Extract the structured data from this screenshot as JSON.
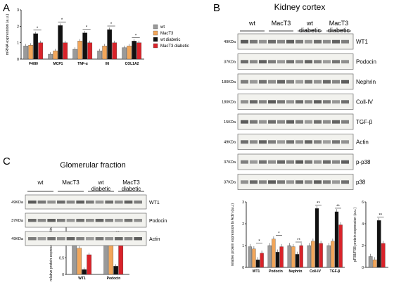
{
  "panels": {
    "A": {
      "letter": "A",
      "legend": [
        "wt",
        "MacT3",
        "wt diabetic",
        "MacT3 diabetic"
      ],
      "colors": {
        "wt": "#9a9a9a",
        "MacT3": "#f2a65a",
        "wt diabetic": "#111111",
        "MacT3 diabetic": "#d9232a"
      }
    },
    "B": {
      "letter": "B",
      "title": "Kidney cortex",
      "groups": [
        "wt",
        "MacT3",
        "wt\ndiabetic",
        "MacT3\ndiabetic"
      ],
      "blots": [
        {
          "kda": "49KDa",
          "label": "WT1"
        },
        {
          "kda": "37KDa",
          "label": "Podocin"
        },
        {
          "kda": "180KDa",
          "label": "Nephrin"
        },
        {
          "kda": "180KDa",
          "label": "Coll-IV"
        },
        {
          "kda": "15KDa",
          "label": "TGF-β"
        },
        {
          "kda": "49KDa",
          "label": "Actin"
        },
        {
          "kda": "37KDa",
          "label": "p-p38"
        },
        {
          "kda": "37KDa",
          "label": "p38"
        }
      ]
    },
    "C": {
      "letter": "C",
      "title": "Glomerular fraction",
      "groups": [
        "wt",
        "MacT3",
        "wt\ndiabetic",
        "MacT3\ndiabetic"
      ],
      "blots": [
        {
          "kda": "49KDa",
          "label": "WT1"
        },
        {
          "kda": "37KDa",
          "label": "Podocin"
        },
        {
          "kda": "49KDa",
          "label": "Actin"
        }
      ]
    }
  },
  "chart_data": [
    {
      "id": "A",
      "type": "bar",
      "ylabel": "mRNA expression (a.u.)",
      "ylim": [
        0,
        3
      ],
      "yticks": [
        0,
        1,
        2,
        3
      ],
      "categories": [
        "F4/80",
        "MCP1",
        "TNF-α",
        "Il6",
        "COL1A2"
      ],
      "series": [
        {
          "name": "wt",
          "values": [
            0.8,
            0.3,
            0.6,
            0.5,
            0.7
          ]
        },
        {
          "name": "MacT3",
          "values": [
            0.85,
            0.5,
            1.1,
            0.8,
            0.8
          ]
        },
        {
          "name": "wt diabetic",
          "values": [
            1.55,
            2.05,
            1.6,
            1.8,
            1.1
          ]
        },
        {
          "name": "MacT3 diabetic",
          "values": [
            1.0,
            1.0,
            1.0,
            1.0,
            1.0
          ]
        }
      ],
      "annotations": [
        "*",
        "*",
        "*",
        "*",
        "*"
      ]
    },
    {
      "id": "B-actin",
      "type": "bar",
      "ylabel": "relative protein expression to Actin (a.u.)",
      "ylim": [
        0,
        3
      ],
      "yticks": [
        0,
        1,
        2,
        3
      ],
      "categories": [
        "WT1",
        "Podocin",
        "Nephrin",
        "Coll-IV",
        "TGF-β"
      ],
      "series": [
        {
          "name": "wt",
          "values": [
            0.95,
            1.0,
            1.0,
            1.0,
            1.0
          ]
        },
        {
          "name": "MacT3",
          "values": [
            0.85,
            1.3,
            0.95,
            1.2,
            1.2
          ]
        },
        {
          "name": "wt diabetic",
          "values": [
            0.35,
            0.7,
            0.6,
            2.7,
            2.55
          ]
        },
        {
          "name": "MacT3 diabetic",
          "values": [
            0.65,
            0.95,
            1.0,
            1.1,
            1.95
          ]
        }
      ],
      "annotations": [
        "*",
        "*",
        "**",
        "**",
        "**"
      ]
    },
    {
      "id": "B-p38",
      "type": "bar",
      "ylabel": "pP38/P38 protein expression (a.u.)",
      "ylim": [
        0,
        6
      ],
      "yticks": [
        0,
        2,
        4,
        6
      ],
      "categories": [
        ""
      ],
      "series": [
        {
          "name": "wt",
          "values": [
            1.0
          ]
        },
        {
          "name": "MacT3",
          "values": [
            0.7
          ]
        },
        {
          "name": "wt diabetic",
          "values": [
            4.3
          ]
        },
        {
          "name": "MacT3 diabetic",
          "values": [
            2.2
          ]
        }
      ],
      "annotations": [
        "**"
      ]
    },
    {
      "id": "C",
      "type": "bar",
      "ylabel": "relative protein expression to Actin (a.u.)",
      "ylim": [
        0,
        1.5
      ],
      "yticks": [
        0.0,
        0.5,
        1.0,
        1.5
      ],
      "categories": [
        "WT1",
        "Podocin"
      ],
      "series": [
        {
          "name": "wt",
          "values": [
            1.0,
            1.0
          ]
        },
        {
          "name": "MacT3",
          "values": [
            0.8,
            1.1
          ]
        },
        {
          "name": "wt diabetic",
          "values": [
            0.15,
            0.25
          ]
        },
        {
          "name": "MacT3 diabetic",
          "values": [
            0.6,
            1.0
          ]
        }
      ],
      "annotations": [
        "*",
        "**"
      ]
    }
  ]
}
